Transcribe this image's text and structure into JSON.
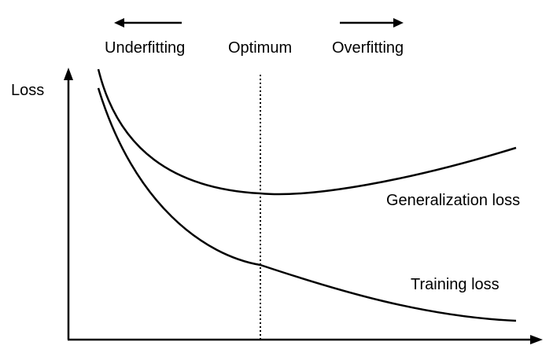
{
  "labels": {
    "y_axis": "Loss",
    "underfitting": "Underfitting",
    "optimum": "Optimum",
    "overfitting": "Overfitting",
    "generalization_loss": "Generalization loss",
    "training_loss": "Training loss"
  },
  "colors": {
    "ink": "#000000",
    "background": "#ffffff"
  },
  "chart_data": {
    "type": "line",
    "xlabel": "",
    "ylabel": "Loss",
    "x_tick_labels": [],
    "y_tick_labels": [],
    "grid": false,
    "series": [
      {
        "name": "Generalization loss",
        "shape": "U-shaped curve, falls steeply then rises gently"
      },
      {
        "name": "Training loss",
        "shape": "monotonically decreasing curve"
      }
    ],
    "annotations": [
      {
        "text": "Optimum",
        "style": "dotted vertical line at the minimum of the generalization loss"
      },
      {
        "text": "Underfitting",
        "style": "arrow pointing left"
      },
      {
        "text": "Overfitting",
        "style": "arrow pointing right"
      }
    ]
  }
}
